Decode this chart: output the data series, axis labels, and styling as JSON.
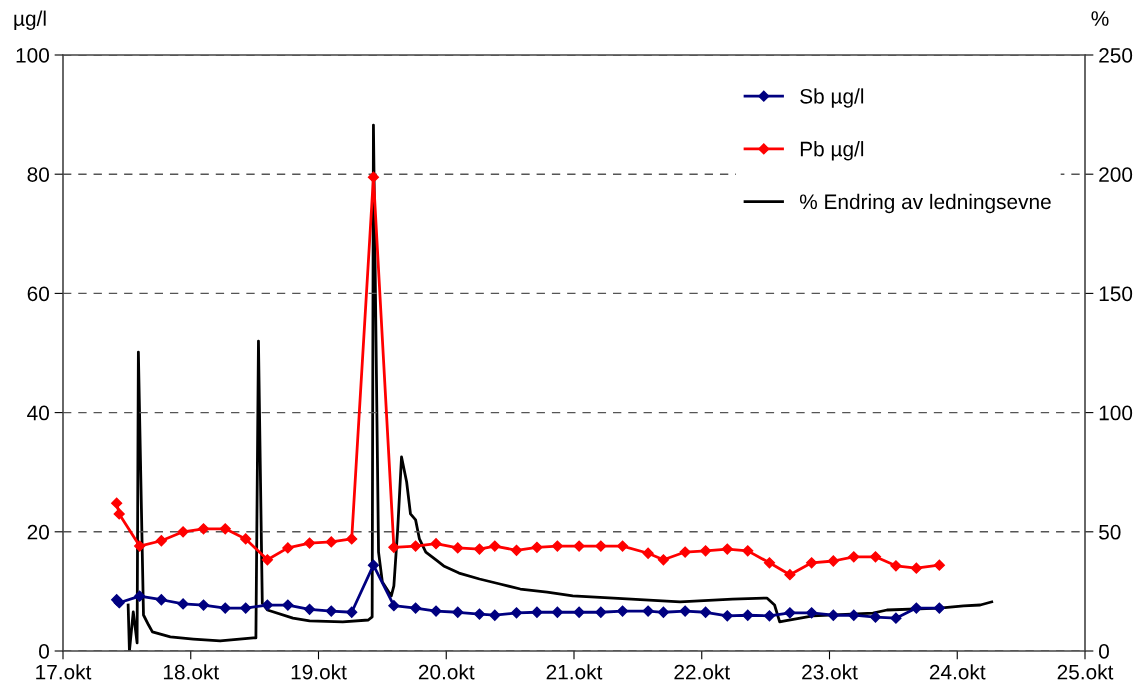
{
  "chart_data": {
    "type": "line",
    "ylabel": "µg/l",
    "y2label": "%",
    "xlim": [
      17,
      25
    ],
    "xticks": [
      {
        "value": 17,
        "label": "17.okt"
      },
      {
        "value": 18,
        "label": "18.okt"
      },
      {
        "value": 19,
        "label": "19.okt"
      },
      {
        "value": 20,
        "label": "20.okt"
      },
      {
        "value": 21,
        "label": "21.okt"
      },
      {
        "value": 22,
        "label": "22.okt"
      },
      {
        "value": 23,
        "label": "23.okt"
      },
      {
        "value": 24,
        "label": "24.okt"
      },
      {
        "value": 25,
        "label": "25.okt"
      }
    ],
    "ylim": [
      0,
      100
    ],
    "yticks": [
      0,
      20,
      40,
      60,
      80,
      100
    ],
    "y2lim": [
      0,
      250
    ],
    "y2ticks": [
      0,
      50,
      100,
      150,
      200,
      250
    ],
    "grid": "y",
    "legend": "top right",
    "line_style": "solid",
    "series": [
      {
        "name": "Sb µg/l",
        "color": "#000080",
        "marker": "diamond",
        "x": [
          17.42,
          17.44,
          17.6,
          17.77,
          17.94,
          18.1,
          18.27,
          18.43,
          18.6,
          18.76,
          18.93,
          19.1,
          19.26,
          19.43,
          19.59,
          19.76,
          19.92,
          20.09,
          20.26,
          20.38,
          20.55,
          20.71,
          20.87,
          21.04,
          21.21,
          21.38,
          21.58,
          21.7,
          21.87,
          22.03,
          22.2,
          22.36,
          22.53,
          22.69,
          22.86,
          23.03,
          23.19,
          23.36,
          23.52,
          23.68,
          23.86
        ],
        "values": [
          8.6,
          8.1,
          9.2,
          8.6,
          7.9,
          7.7,
          7.2,
          7.2,
          7.7,
          7.7,
          7.0,
          6.7,
          6.5,
          14.4,
          7.6,
          7.2,
          6.7,
          6.5,
          6.2,
          6.0,
          6.4,
          6.5,
          6.5,
          6.5,
          6.5,
          6.7,
          6.7,
          6.5,
          6.7,
          6.5,
          5.9,
          6.0,
          5.9,
          6.4,
          6.4,
          6.0,
          6.0,
          5.7,
          5.5,
          7.2,
          7.2
        ]
      },
      {
        "name": "Pb µg/l",
        "color": "#ff0000",
        "marker": "diamond",
        "x": [
          17.42,
          17.44,
          17.6,
          17.77,
          17.94,
          18.1,
          18.27,
          18.43,
          18.6,
          18.76,
          18.93,
          19.1,
          19.26,
          19.43,
          19.59,
          19.76,
          19.92,
          20.09,
          20.26,
          20.38,
          20.55,
          20.71,
          20.87,
          21.04,
          21.21,
          21.38,
          21.58,
          21.7,
          21.87,
          22.03,
          22.2,
          22.36,
          22.53,
          22.69,
          22.86,
          23.03,
          23.19,
          23.36,
          23.52,
          23.68,
          23.86
        ],
        "values": [
          24.8,
          23.0,
          17.6,
          18.5,
          20.0,
          20.5,
          20.5,
          18.8,
          15.3,
          17.3,
          18.1,
          18.3,
          18.8,
          79.5,
          17.4,
          17.6,
          18.0,
          17.3,
          17.1,
          17.6,
          16.9,
          17.4,
          17.6,
          17.6,
          17.6,
          17.6,
          16.4,
          15.3,
          16.6,
          16.8,
          17.1,
          16.8,
          14.8,
          12.8,
          14.8,
          15.1,
          15.8,
          15.8,
          14.3,
          13.9,
          14.4
        ]
      },
      {
        "name": "% Endring av ledningsevne",
        "color": "#000000",
        "marker": "none",
        "axis": "y2",
        "x": [
          17.51,
          17.52,
          17.55,
          17.58,
          17.59,
          17.63,
          17.67,
          17.7,
          17.84,
          18.02,
          18.23,
          18.49,
          18.51,
          18.53,
          18.56,
          18.6,
          18.8,
          18.93,
          19.19,
          19.39,
          19.42,
          19.43,
          19.47,
          19.5,
          19.57,
          19.59,
          19.62,
          19.65,
          19.69,
          19.72,
          19.76,
          19.79,
          19.84,
          19.93,
          19.98,
          20.1,
          20.26,
          20.42,
          20.58,
          20.79,
          20.99,
          21.31,
          21.83,
          22.24,
          22.51,
          22.57,
          22.61,
          22.65,
          22.87,
          23.34,
          23.45,
          23.86,
          24.05,
          24.18,
          24.27
        ],
        "values": [
          19.3,
          0,
          16.4,
          3.4,
          125.4,
          15.1,
          10.9,
          8.0,
          5.9,
          5.0,
          4.2,
          5.5,
          5.5,
          130.0,
          20.1,
          17.2,
          13.8,
          12.6,
          12.2,
          13.0,
          14.3,
          220.6,
          41.5,
          28.9,
          23.1,
          27.3,
          51.2,
          81.4,
          70.9,
          57.5,
          55.0,
          47.0,
          41.5,
          37.8,
          35.7,
          32.7,
          30.2,
          28.1,
          26.0,
          24.7,
          23.1,
          22.2,
          20.6,
          21.8,
          22.2,
          19.3,
          12.2,
          12.6,
          14.7,
          15.9,
          17.2,
          18.0,
          18.9,
          19.3,
          20.6
        ]
      }
    ]
  }
}
